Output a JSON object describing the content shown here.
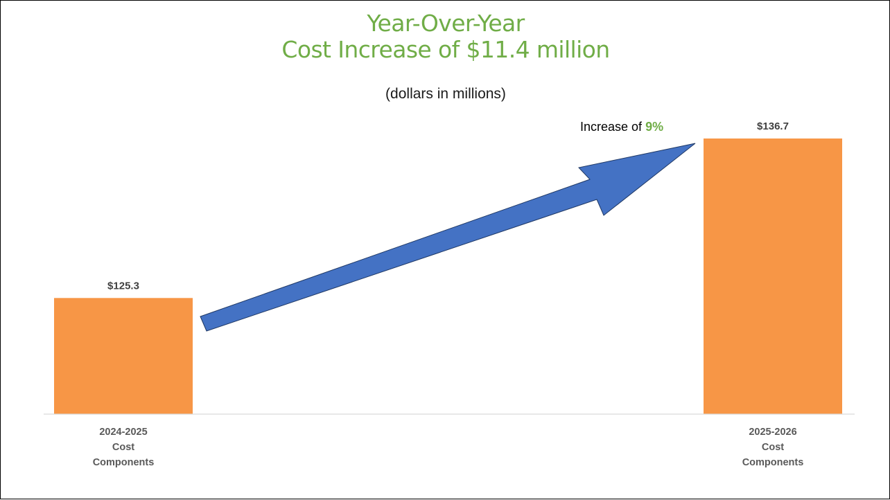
{
  "chart_data": {
    "type": "bar",
    "title": [
      "Year-Over-Year",
      "Cost Increase of $11.4 million"
    ],
    "subtitle": "(dollars in millions)",
    "categories": [
      [
        "2024-2025",
        "Cost",
        "Components"
      ],
      [
        "2025-2026",
        "Cost",
        "Components"
      ]
    ],
    "values": [
      125.3,
      136.7
    ],
    "data_labels": [
      "$125.3",
      "$136.7"
    ],
    "annotation": {
      "prefix": "Increase of ",
      "value": "9%"
    },
    "colors": {
      "bar": "#f79646",
      "arrow": "#4472c4",
      "arrow_outline": "#1f3864",
      "title": "#70ad47",
      "highlight": "#70ad47"
    },
    "grid": false,
    "legend": "none"
  }
}
